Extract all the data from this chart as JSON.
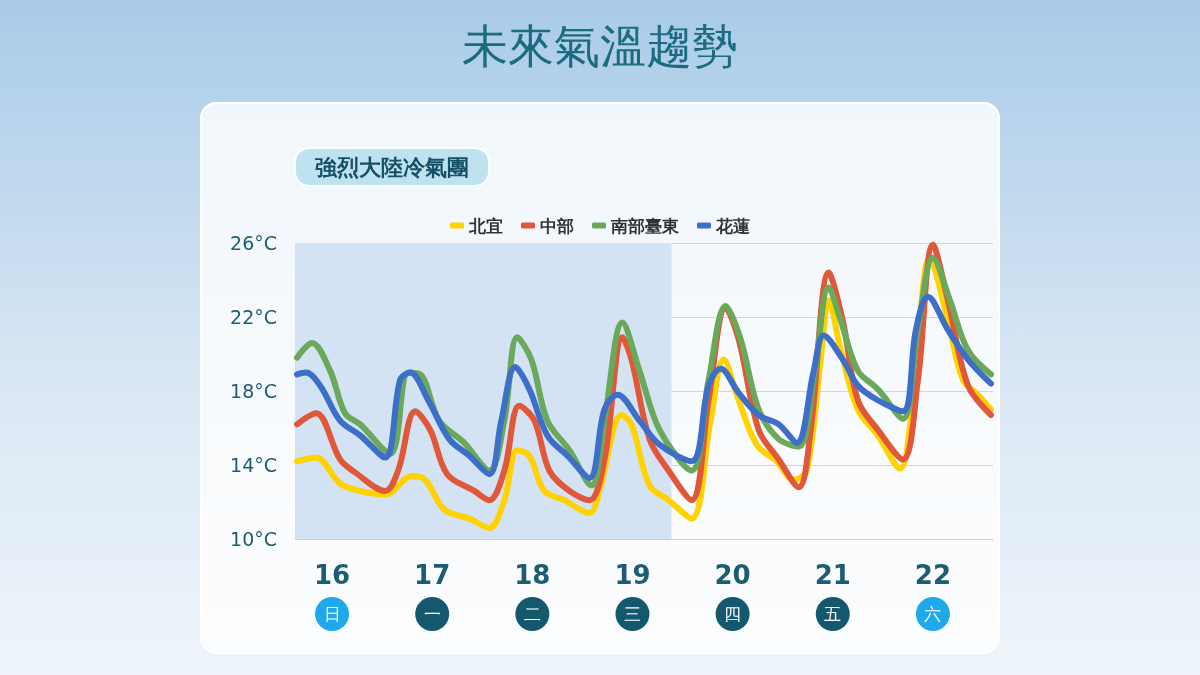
{
  "chart_data": {
    "type": "line",
    "title": "未來氣溫趨勢",
    "subtitle": "強烈大陸冷氣團",
    "xlim": [
      15.63,
      22.6
    ],
    "xticks": [
      {
        "value": 16,
        "label": "16\n日"
      },
      {
        "value": 17,
        "label": "17\n一"
      },
      {
        "value": 18,
        "label": "18\n二"
      },
      {
        "value": 19,
        "label": "19\n三"
      },
      {
        "value": 20,
        "label": "20\n四"
      },
      {
        "value": 21,
        "label": "21\n五"
      },
      {
        "value": 22,
        "label": "22\n六"
      }
    ],
    "ylim": [
      10,
      26
    ],
    "yticks": [
      {
        "value": 10,
        "label": "10°C"
      },
      {
        "value": 14,
        "label": "14°C"
      },
      {
        "value": 18,
        "label": "18°C"
      },
      {
        "value": 22,
        "label": "22°C"
      },
      {
        "value": 26,
        "label": "26°C"
      }
    ],
    "grid": "y",
    "legend": "top",
    "marker": "none",
    "line_style": "solid",
    "bands": [
      {
        "axis": "x",
        "from": 15.63,
        "to": 19.39,
        "color": "#d3e3f3"
      }
    ],
    "series": [
      {
        "name": "北宜",
        "color": "#ffd200",
        "x": [
          15.65,
          15.84,
          16.08,
          16.28,
          16.53,
          16.8,
          16.93,
          17.12,
          17.37,
          17.57,
          17.72,
          17.85,
          17.97,
          18.12,
          18.32,
          18.57,
          18.67,
          18.89,
          18.99,
          19.17,
          19.36,
          19.59,
          19.78,
          19.91,
          20.06,
          20.24,
          20.44,
          20.61,
          20.74,
          20.88,
          20.96,
          21.08,
          21.25,
          21.45,
          21.67,
          21.8,
          21.97,
          22.15,
          22.3,
          22.45,
          22.58
        ],
        "values": [
          14.2,
          14.4,
          13.0,
          12.6,
          12.4,
          13.4,
          13.2,
          11.6,
          11.1,
          10.6,
          12.1,
          14.8,
          14.5,
          12.6,
          12.1,
          11.4,
          12.6,
          16.7,
          16.2,
          12.9,
          12.1,
          11.1,
          16.4,
          19.7,
          17.5,
          15.1,
          14.2,
          13.2,
          13.7,
          19.7,
          22.9,
          20.2,
          17.0,
          15.6,
          13.8,
          17.5,
          25.2,
          21.8,
          18.6,
          17.8,
          17.0
        ]
      },
      {
        "name": "中部",
        "color": "#e0573a",
        "x": [
          15.65,
          15.84,
          16.08,
          16.23,
          16.53,
          16.66,
          16.83,
          16.98,
          17.15,
          17.42,
          17.57,
          17.72,
          17.87,
          18.02,
          18.17,
          18.37,
          18.57,
          18.72,
          18.9,
          18.99,
          19.17,
          19.36,
          19.59,
          19.76,
          19.93,
          20.06,
          20.26,
          20.46,
          20.66,
          20.78,
          20.96,
          21.1,
          21.25,
          21.45,
          21.7,
          21.85,
          22.0,
          22.15,
          22.35,
          22.58
        ],
        "values": [
          16.2,
          16.8,
          14.3,
          13.6,
          12.6,
          13.7,
          16.9,
          15.9,
          13.5,
          12.6,
          12.1,
          13.7,
          17.2,
          16.4,
          13.7,
          12.6,
          12.1,
          14.3,
          20.9,
          19.7,
          15.4,
          13.7,
          12.1,
          17.5,
          22.5,
          20.8,
          15.9,
          14.3,
          12.8,
          15.9,
          24.4,
          21.8,
          17.5,
          15.9,
          14.3,
          18.6,
          25.9,
          22.9,
          18.3,
          16.7
        ]
      },
      {
        "name": "南部臺東",
        "color": "#6aa85c",
        "x": [
          15.65,
          15.8,
          15.98,
          16.13,
          16.28,
          16.58,
          16.76,
          16.88,
          17.07,
          17.32,
          17.57,
          17.72,
          17.85,
          17.99,
          18.15,
          18.37,
          18.59,
          18.72,
          18.9,
          19.07,
          19.27,
          19.59,
          19.76,
          19.93,
          20.08,
          20.26,
          20.46,
          20.66,
          20.81,
          20.96,
          21.08,
          21.25,
          21.45,
          21.7,
          21.85,
          22.0,
          22.17,
          22.35,
          22.58
        ],
        "values": [
          19.8,
          20.6,
          19.1,
          16.8,
          16.2,
          14.6,
          19.0,
          18.9,
          16.4,
          15.2,
          13.7,
          16.4,
          20.9,
          19.7,
          16.4,
          14.8,
          12.9,
          16.4,
          21.7,
          19.1,
          15.9,
          13.7,
          18.6,
          22.6,
          20.8,
          17.0,
          15.4,
          15.0,
          18.6,
          23.6,
          21.8,
          19.1,
          18.1,
          16.5,
          21.3,
          25.2,
          22.9,
          20.2,
          18.9
        ]
      },
      {
        "name": "花蓮",
        "color": "#3d6fc8",
        "x": [
          15.65,
          15.74,
          15.88,
          16.08,
          16.28,
          16.53,
          16.68,
          16.78,
          16.96,
          17.17,
          17.37,
          17.57,
          17.69,
          17.83,
          17.97,
          18.15,
          18.35,
          18.57,
          18.72,
          18.85,
          19.07,
          19.27,
          19.59,
          19.76,
          19.88,
          20.06,
          20.26,
          20.46,
          20.64,
          20.81,
          20.91,
          21.1,
          21.25,
          21.45,
          21.7,
          21.83,
          21.95,
          22.15,
          22.35,
          22.58
        ],
        "values": [
          18.9,
          19.0,
          18.3,
          16.4,
          15.6,
          14.4,
          18.6,
          19.0,
          17.5,
          15.4,
          14.5,
          13.5,
          16.4,
          19.3,
          18.1,
          15.6,
          14.5,
          13.3,
          17.0,
          17.8,
          16.4,
          15.1,
          14.2,
          18.3,
          19.2,
          17.9,
          16.7,
          16.2,
          15.2,
          19.1,
          21.0,
          19.7,
          18.3,
          17.5,
          16.9,
          21.3,
          23.1,
          21.3,
          19.7,
          18.4
        ]
      }
    ]
  }
}
